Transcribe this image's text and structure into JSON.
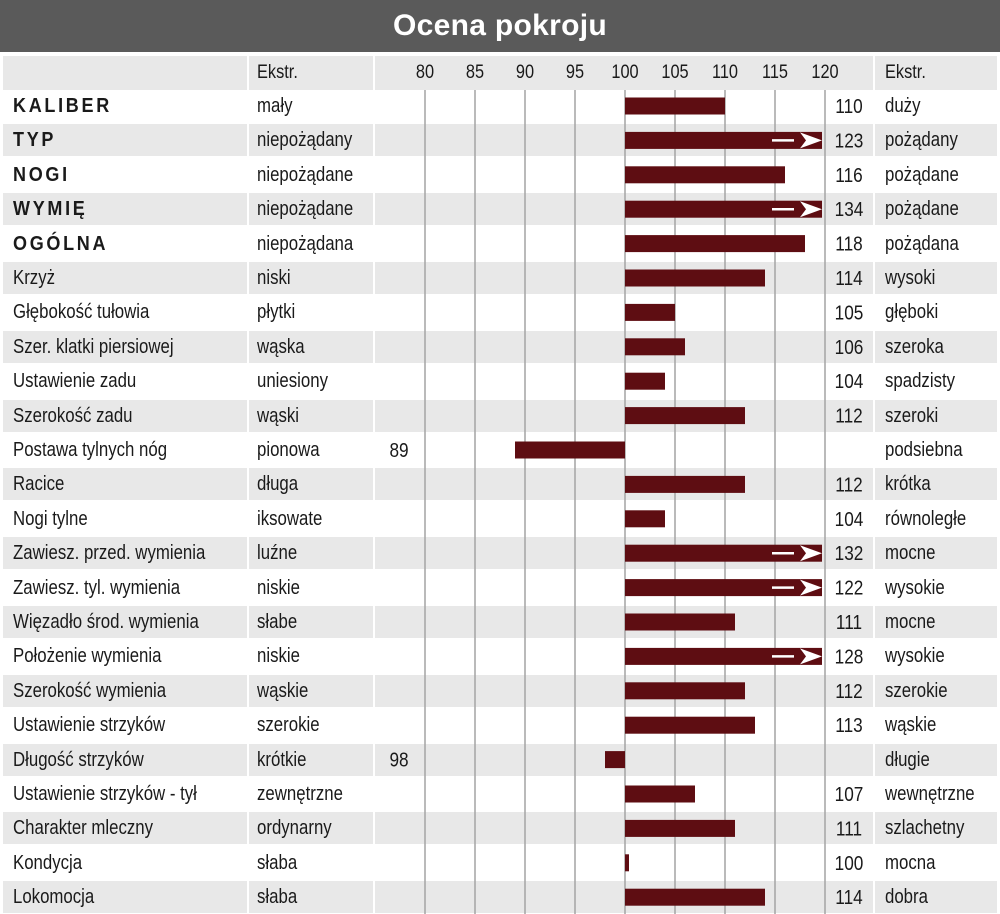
{
  "title": "Ocena pokroju",
  "header": {
    "extreme_left": "Ekstr.",
    "extreme_right": "Ekstr."
  },
  "colors": {
    "bar": "#5e0d12",
    "title_bg": "#5a5a5a",
    "row_alt": "#e8e8e8",
    "grid": "#a8a8a8"
  },
  "chart_data": {
    "type": "bar",
    "orientation": "horizontal",
    "title": "Ocena pokroju",
    "baseline": 100,
    "xlim": [
      75,
      120
    ],
    "x_ticks": [
      "80",
      "85",
      "90",
      "95",
      "100",
      "105",
      "110",
      "115",
      "120"
    ],
    "grid": true,
    "rows": [
      {
        "trait": "KALIBER",
        "bold": true,
        "left": "mały",
        "right": "duży",
        "value": 110,
        "label": "110",
        "arrow": false
      },
      {
        "trait": "TYP",
        "bold": true,
        "left": "niepożądany",
        "right": "pożądany",
        "value": 123,
        "label": "123",
        "arrow": true
      },
      {
        "trait": "NOGI",
        "bold": true,
        "left": "niepożądane",
        "right": "pożądane",
        "value": 116,
        "label": "116",
        "arrow": false
      },
      {
        "trait": "WYMIĘ",
        "bold": true,
        "left": "niepożądane",
        "right": "pożądane",
        "value": 134,
        "label": "134",
        "arrow": true
      },
      {
        "trait": "OGÓLNA",
        "bold": true,
        "left": "niepożądana",
        "right": "pożądana",
        "value": 118,
        "label": "118",
        "arrow": false
      },
      {
        "trait": "Krzyż",
        "bold": false,
        "left": "niski",
        "right": "wysoki",
        "value": 114,
        "label": "114",
        "arrow": false
      },
      {
        "trait": "Głębokość tułowia",
        "bold": false,
        "left": "płytki",
        "right": "głęboki",
        "value": 105,
        "label": "105",
        "arrow": false
      },
      {
        "trait": "Szer. klatki piersiowej",
        "bold": false,
        "left": "wąska",
        "right": "szeroka",
        "value": 106,
        "label": "106",
        "arrow": false
      },
      {
        "trait": "Ustawienie zadu",
        "bold": false,
        "left": "uniesiony",
        "right": "spadzisty",
        "value": 104,
        "label": "104",
        "arrow": false
      },
      {
        "trait": "Szerokość zadu",
        "bold": false,
        "left": "wąski",
        "right": "szeroki",
        "value": 112,
        "label": "112",
        "arrow": false
      },
      {
        "trait": "Postawa tylnych nóg",
        "bold": false,
        "left": "pionowa",
        "right": "podsiebna",
        "value": 89,
        "label": "89",
        "arrow": false
      },
      {
        "trait": "Racice",
        "bold": false,
        "left": "długa",
        "right": "krótka",
        "value": 112,
        "label": "112",
        "arrow": false
      },
      {
        "trait": "Nogi tylne",
        "bold": false,
        "left": "iksowate",
        "right": "równoległe",
        "value": 104,
        "label": "104",
        "arrow": false
      },
      {
        "trait": "Zawiesz. przed. wymienia",
        "bold": false,
        "left": "luźne",
        "right": "mocne",
        "value": 132,
        "label": "132",
        "arrow": true
      },
      {
        "trait": "Zawiesz. tyl. wymienia",
        "bold": false,
        "left": "niskie",
        "right": "wysokie",
        "value": 122,
        "label": "122",
        "arrow": true
      },
      {
        "trait": "Więzadło środ. wymienia",
        "bold": false,
        "left": "słabe",
        "right": "mocne",
        "value": 111,
        "label": "111",
        "arrow": false
      },
      {
        "trait": "Położenie wymienia",
        "bold": false,
        "left": "niskie",
        "right": "wysokie",
        "value": 128,
        "label": "128",
        "arrow": true
      },
      {
        "trait": "Szerokość wymienia",
        "bold": false,
        "left": "wąskie",
        "right": "szerokie",
        "value": 112,
        "label": "112",
        "arrow": false
      },
      {
        "trait": "Ustawienie strzyków",
        "bold": false,
        "left": "szerokie",
        "right": "wąskie",
        "value": 113,
        "label": "113",
        "arrow": false
      },
      {
        "trait": "Długość strzyków",
        "bold": false,
        "left": "krótkie",
        "right": "długie",
        "value": 98,
        "label": "98",
        "arrow": false
      },
      {
        "trait": "Ustawienie strzyków - tył",
        "bold": false,
        "left": "zewnętrzne",
        "right": "wewnętrzne",
        "value": 107,
        "label": "107",
        "arrow": false
      },
      {
        "trait": "Charakter mleczny",
        "bold": false,
        "left": "ordynarny",
        "right": "szlachetny",
        "value": 111,
        "label": "111",
        "arrow": false
      },
      {
        "trait": "Kondycja",
        "bold": false,
        "left": "słaba",
        "right": "mocna",
        "value": 100,
        "label": "100",
        "arrow": false
      },
      {
        "trait": "Lokomocja",
        "bold": false,
        "left": "słaba",
        "right": "dobra",
        "value": 114,
        "label": "114",
        "arrow": false
      }
    ]
  }
}
